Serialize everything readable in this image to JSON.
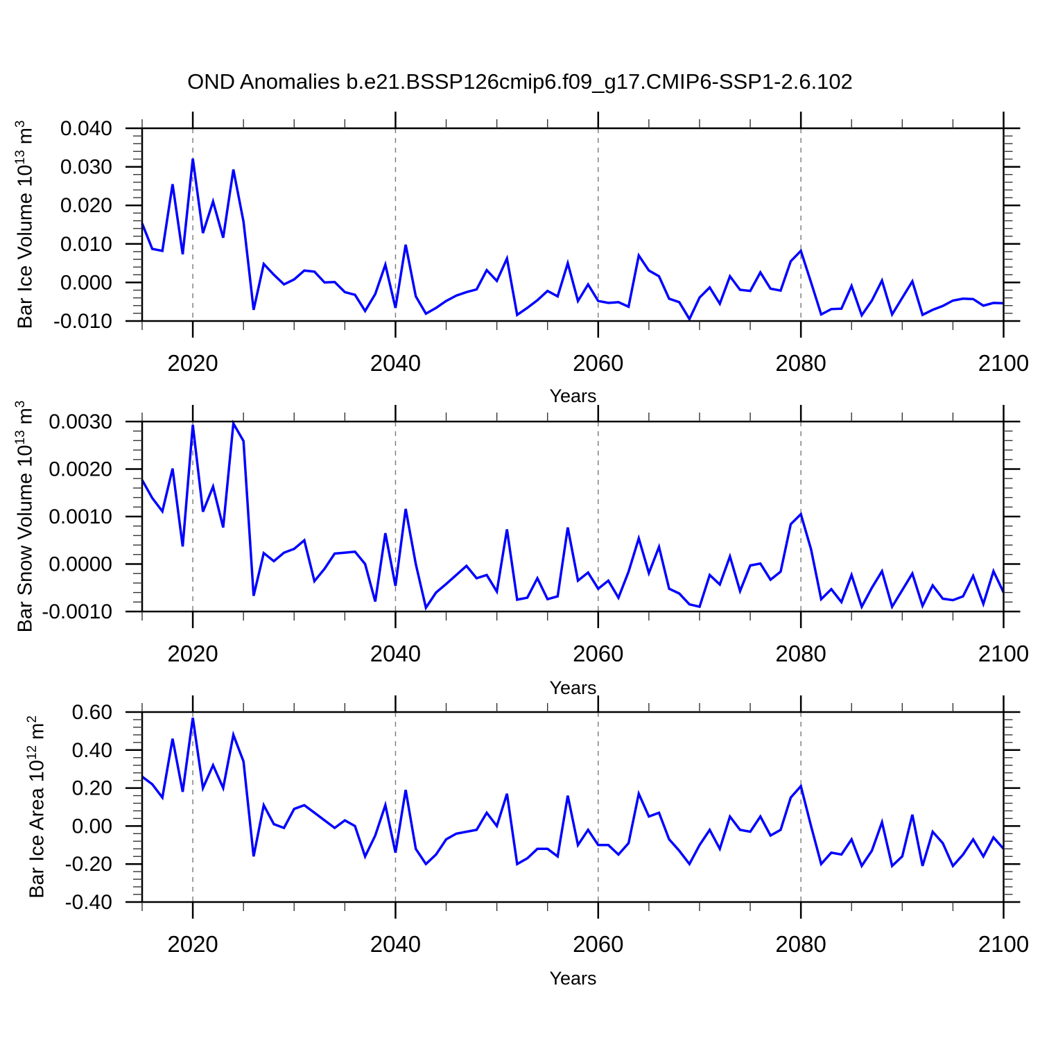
{
  "title": "OND Anomalies b.e21.BSSP126cmip6.f09_g17.CMIP6-SSP1-2.6.102",
  "background": "#ffffff",
  "line_color": "#0000ff",
  "axis_color": "#000000",
  "grid_color": "#777777",
  "x_tick_labels": [
    "2020",
    "2040",
    "2060",
    "2080",
    "2100"
  ],
  "panels": [
    {
      "ylabel_parts": {
        "base": "Bar Ice Volume 10",
        "exp1": "13",
        "mid": " m",
        "exp2": "3"
      },
      "xlabel": "Years"
    },
    {
      "ylabel_parts": {
        "base": "Bar Snow Volume 10",
        "exp1": "13",
        "mid": " m",
        "exp2": "3"
      },
      "xlabel": "Years"
    },
    {
      "ylabel_parts": {
        "base": "Bar Ice Area 10",
        "exp1": "12",
        "mid": " m",
        "exp2": "2"
      },
      "xlabel": "Years"
    }
  ],
  "chart_data": [
    {
      "type": "line",
      "title": "OND Anomalies b.e21.BSSP126cmip6.f09_g17.CMIP6-SSP1-2.6.102",
      "ylabel": "Bar Ice Volume 10^13 m^3",
      "xlabel": "Years",
      "x_start": 2015,
      "x_end": 2100,
      "x_step": 1,
      "xlim": [
        2015,
        2100
      ],
      "ylim": [
        -0.01,
        0.04
      ],
      "yticks": [
        0.04,
        0.03,
        0.02,
        0.01,
        0.0,
        -0.01
      ],
      "ytick_labels": [
        "0.040",
        "0.030",
        "0.020",
        "0.010",
        "0.000",
        "-0.010"
      ],
      "y_minor_step": 0.002,
      "x_major_ticks": [
        2020,
        2040,
        2060,
        2080,
        2100
      ],
      "x_minor_step": 5,
      "gridlines_x": [
        2020,
        2040,
        2060,
        2080
      ],
      "grid_style": "vertical dashed",
      "legend": "none",
      "values": [
        0.0153,
        0.0087,
        0.0082,
        0.0255,
        0.0073,
        0.0321,
        0.0128,
        0.021,
        0.0116,
        0.0293,
        0.0158,
        -0.0071,
        0.0048,
        0.002,
        -0.0005,
        0.0008,
        0.0031,
        0.0028,
        0.0,
        0.0001,
        -0.0025,
        -0.0032,
        -0.0074,
        -0.003,
        0.0046,
        -0.0066,
        0.0098,
        -0.0036,
        -0.0081,
        -0.0066,
        -0.0048,
        -0.0034,
        -0.0025,
        -0.0018,
        0.0032,
        0.0004,
        0.0062,
        -0.0084,
        -0.0066,
        -0.0046,
        -0.0022,
        -0.0036,
        0.005,
        -0.0048,
        -0.0005,
        -0.0048,
        -0.0053,
        -0.0051,
        -0.0063,
        0.007,
        0.0031,
        0.0016,
        -0.0042,
        -0.0051,
        -0.0095,
        -0.0039,
        -0.0013,
        -0.0055,
        0.0016,
        -0.0019,
        -0.0022,
        0.0026,
        -0.0016,
        -0.0021,
        0.0055,
        0.0082,
        0.0,
        -0.0083,
        -0.0069,
        -0.0068,
        -0.0009,
        -0.0085,
        -0.0047,
        0.0005,
        -0.0083,
        -0.004,
        0.0003,
        -0.0084,
        -0.0071,
        -0.0061,
        -0.0047,
        -0.0042,
        -0.0043,
        -0.006,
        -0.0053,
        -0.0054
      ]
    },
    {
      "type": "line",
      "title": "",
      "ylabel": "Bar Snow Volume 10^13 m^3",
      "xlabel": "Years",
      "x_start": 2015,
      "x_end": 2100,
      "x_step": 1,
      "xlim": [
        2015,
        2100
      ],
      "ylim": [
        -0.001,
        0.003
      ],
      "yticks": [
        0.003,
        0.002,
        0.001,
        0.0,
        -0.001
      ],
      "ytick_labels": [
        "0.0030",
        "0.0020",
        "0.0010",
        "0.0000",
        "-0.0010"
      ],
      "y_minor_step": 0.0002,
      "x_major_ticks": [
        2020,
        2040,
        2060,
        2080,
        2100
      ],
      "x_minor_step": 5,
      "gridlines_x": [
        2020,
        2040,
        2060,
        2080
      ],
      "grid_style": "vertical dashed",
      "legend": "none",
      "values": [
        0.00177,
        0.00139,
        0.00111,
        0.00201,
        0.00037,
        0.00293,
        0.0011,
        0.00163,
        0.00077,
        0.00296,
        0.00259,
        -0.00067,
        0.00023,
        6e-05,
        0.00024,
        0.00032,
        0.0005,
        -0.00036,
        -0.0001,
        0.00022,
        0.00024,
        0.00026,
        0.0,
        -0.00079,
        0.00065,
        -0.00046,
        0.00116,
        0.0,
        -0.00092,
        -0.0006,
        -0.00042,
        -0.00023,
        -4e-05,
        -0.0003,
        -0.00023,
        -0.00058,
        0.00073,
        -0.00075,
        -0.00071,
        -0.0003,
        -0.00074,
        -0.00068,
        0.00077,
        -0.00035,
        -0.00018,
        -0.00052,
        -0.00035,
        -0.00071,
        -0.00016,
        0.00054,
        -0.00019,
        0.00036,
        -0.00052,
        -0.00062,
        -0.00085,
        -0.0009,
        -0.00023,
        -0.00043,
        0.00016,
        -0.00057,
        -3e-05,
        1e-05,
        -0.00033,
        -0.00016,
        0.00084,
        0.00105,
        0.00031,
        -0.00074,
        -0.00053,
        -0.0008,
        -0.00023,
        -0.0009,
        -0.0005,
        -0.00015,
        -0.0009,
        -0.00055,
        -0.0002,
        -0.00088,
        -0.00045,
        -0.00073,
        -0.00076,
        -0.00068,
        -0.00025,
        -0.00084,
        -0.00015,
        -0.0006
      ]
    },
    {
      "type": "line",
      "title": "",
      "ylabel": "Bar Ice Area 10^12 m^2",
      "xlabel": "Years",
      "x_start": 2015,
      "x_end": 2100,
      "x_step": 1,
      "xlim": [
        2015,
        2100
      ],
      "ylim": [
        -0.4,
        0.6
      ],
      "yticks": [
        0.6,
        0.4,
        0.2,
        0.0,
        -0.2,
        -0.4
      ],
      "ytick_labels": [
        "0.60",
        "0.40",
        "0.20",
        "0.00",
        "-0.20",
        "-0.40"
      ],
      "y_minor_step": 0.04,
      "x_major_ticks": [
        2020,
        2040,
        2060,
        2080,
        2100
      ],
      "x_minor_step": 5,
      "gridlines_x": [
        2020,
        2040,
        2060,
        2080
      ],
      "grid_style": "vertical dashed",
      "legend": "none",
      "values": [
        0.26,
        0.22,
        0.15,
        0.46,
        0.18,
        0.57,
        0.2,
        0.32,
        0.2,
        0.48,
        0.34,
        -0.16,
        0.11,
        0.01,
        -0.01,
        0.09,
        0.11,
        0.07,
        0.03,
        -0.01,
        0.03,
        0.0,
        -0.16,
        -0.05,
        0.11,
        -0.14,
        0.19,
        -0.12,
        -0.2,
        -0.15,
        -0.07,
        -0.04,
        -0.03,
        -0.02,
        0.07,
        0.0,
        0.17,
        -0.2,
        -0.17,
        -0.12,
        -0.12,
        -0.16,
        0.16,
        -0.1,
        -0.02,
        -0.1,
        -0.1,
        -0.15,
        -0.09,
        0.17,
        0.05,
        0.07,
        -0.07,
        -0.13,
        -0.2,
        -0.1,
        -0.02,
        -0.12,
        0.05,
        -0.02,
        -0.03,
        0.05,
        -0.05,
        -0.02,
        0.15,
        0.21,
        0.0,
        -0.2,
        -0.14,
        -0.15,
        -0.07,
        -0.21,
        -0.13,
        0.02,
        -0.21,
        -0.16,
        0.06,
        -0.21,
        -0.03,
        -0.09,
        -0.21,
        -0.15,
        -0.07,
        -0.16,
        -0.06,
        -0.12
      ]
    }
  ]
}
